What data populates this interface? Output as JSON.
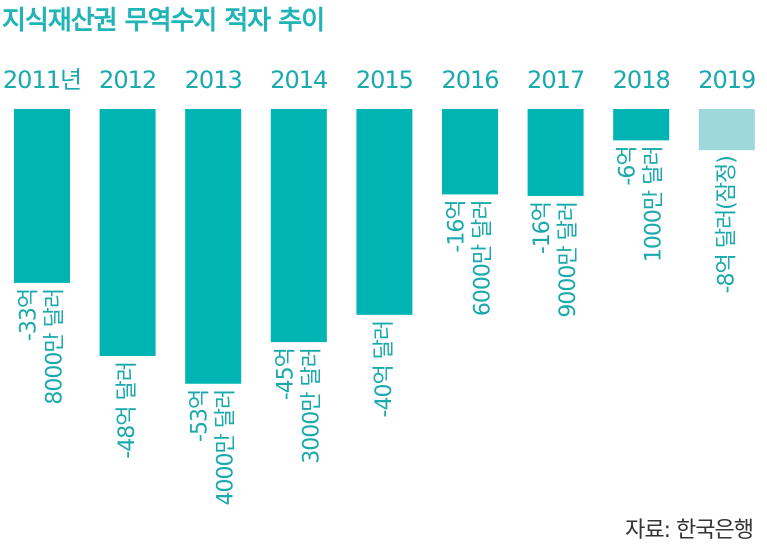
{
  "title": "지식재산권 무역수지 적자 추이",
  "source": "자료: 한국은행",
  "colors": {
    "bar": "#00b4b4",
    "bar_provisional": "#9fd8dc",
    "text": "#1aa9ac"
  },
  "chart_data": {
    "type": "bar",
    "title": "지식재산권 무역수지 적자 추이",
    "categories": [
      "2011년",
      "2012",
      "2013",
      "2014",
      "2015",
      "2016",
      "2017",
      "2018",
      "2019"
    ],
    "values": [
      -33.8,
      -48,
      -53.4,
      -45.3,
      -40,
      -16.6,
      -16.9,
      -6.1,
      -8
    ],
    "unit": "억 달러",
    "provisional": [
      false,
      false,
      false,
      false,
      false,
      false,
      false,
      false,
      true
    ],
    "labels": [
      [
        "-33억",
        "8000만 달러"
      ],
      [
        "-48억 달러"
      ],
      [
        "-53억",
        "4000만 달러"
      ],
      [
        "-45억",
        "3000만 달러"
      ],
      [
        "-40억 달러"
      ],
      [
        "-16억",
        "6000만 달러"
      ],
      [
        "-16억",
        "9000만 달러"
      ],
      [
        "-6억",
        "1000만 달러"
      ],
      [
        "-8억 달러(잠정)"
      ]
    ],
    "ylim": [
      -55,
      0
    ]
  }
}
